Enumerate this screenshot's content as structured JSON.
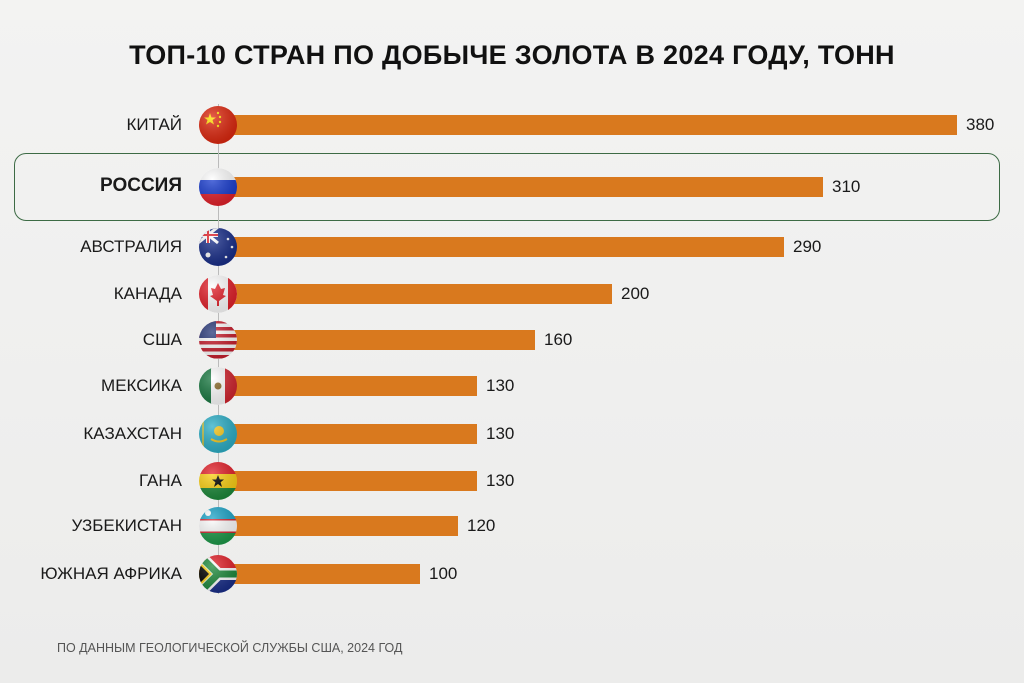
{
  "colors": {
    "bar": "#d9791e",
    "highlight_border": "#3d6b45"
  },
  "chart_data": {
    "type": "bar",
    "orientation": "horizontal",
    "title": "ТОП-10 СТРАН ПО ДОБЫЧЕ ЗОЛОТА В 2024 ГОДУ, ТОНН",
    "categories": [
      "КИТАЙ",
      "РОССИЯ",
      "АВСТРАЛИЯ",
      "КАНАДА",
      "США",
      "МЕКСИКА",
      "КАЗАХСТАН",
      "ГАНА",
      "УЗБЕКИСТАН",
      "ЮЖНАЯ АФРИКА"
    ],
    "values": [
      380,
      310,
      290,
      200,
      160,
      130,
      130,
      130,
      120,
      100
    ],
    "flags": [
      "flag-china",
      "flag-russia",
      "flag-australia",
      "flag-canada",
      "flag-usa",
      "flag-mexico",
      "flag-kazakhstan",
      "flag-ghana",
      "flag-uzbekistan",
      "flag-south-africa"
    ],
    "highlighted": "РОССИЯ",
    "xlim": [
      0,
      400
    ],
    "grid": false,
    "legend": "none"
  },
  "footer": "ПО ДАННЫМ ГЕОЛОГИЧЕСКОЙ СЛУЖБЫ США, 2024 ГОД"
}
